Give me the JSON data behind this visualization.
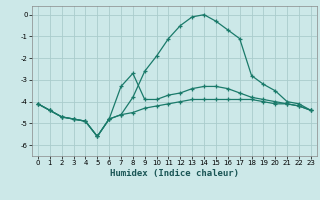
{
  "xlabel": "Humidex (Indice chaleur)",
  "bg_color": "#cce8e8",
  "grid_color": "#aacccc",
  "line_color": "#1a7a6a",
  "xlim": [
    -0.5,
    23.5
  ],
  "ylim": [
    -6.5,
    0.4
  ],
  "yticks": [
    0,
    -1,
    -2,
    -3,
    -4,
    -5,
    -6
  ],
  "xticks": [
    0,
    1,
    2,
    3,
    4,
    5,
    6,
    7,
    8,
    9,
    10,
    11,
    12,
    13,
    14,
    15,
    16,
    17,
    18,
    19,
    20,
    21,
    22,
    23
  ],
  "series1_x": [
    0,
    1,
    2,
    3,
    4,
    5,
    6,
    7,
    8,
    9,
    10,
    11,
    12,
    13,
    14,
    15,
    16,
    17,
    18,
    19,
    20,
    21,
    22,
    23
  ],
  "series1_y": [
    -4.1,
    -4.4,
    -4.7,
    -4.8,
    -4.9,
    -5.6,
    -4.8,
    -4.6,
    -3.8,
    -2.6,
    -1.9,
    -1.1,
    -0.5,
    -0.1,
    0.0,
    -0.3,
    -0.7,
    -1.1,
    -2.8,
    -3.2,
    -3.5,
    -4.0,
    -4.1,
    -4.4
  ],
  "series2_x": [
    0,
    1,
    2,
    3,
    4,
    5,
    6,
    7,
    8,
    9,
    10,
    11,
    12,
    13,
    14,
    15,
    16,
    17,
    18,
    19,
    20,
    21,
    22,
    23
  ],
  "series2_y": [
    -4.1,
    -4.4,
    -4.7,
    -4.8,
    -4.9,
    -5.6,
    -4.8,
    -3.3,
    -2.7,
    -3.9,
    -3.9,
    -3.7,
    -3.6,
    -3.4,
    -3.3,
    -3.3,
    -3.4,
    -3.6,
    -3.8,
    -3.9,
    -4.0,
    -4.1,
    -4.2,
    -4.4
  ],
  "series3_x": [
    0,
    1,
    2,
    3,
    4,
    5,
    6,
    7,
    8,
    9,
    10,
    11,
    12,
    13,
    14,
    15,
    16,
    17,
    18,
    19,
    20,
    21,
    22,
    23
  ],
  "series3_y": [
    -4.1,
    -4.4,
    -4.7,
    -4.8,
    -4.9,
    -5.6,
    -4.8,
    -4.6,
    -4.5,
    -4.3,
    -4.2,
    -4.1,
    -4.0,
    -3.9,
    -3.9,
    -3.9,
    -3.9,
    -3.9,
    -3.9,
    -4.0,
    -4.1,
    -4.1,
    -4.2,
    -4.4
  ]
}
